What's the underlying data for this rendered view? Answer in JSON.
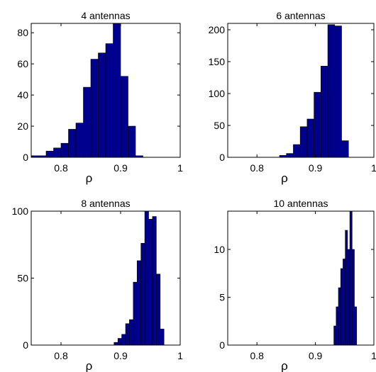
{
  "chart_data": [
    {
      "type": "bar",
      "title": "4 antennas",
      "xlabel": "ρ",
      "ylabel": "",
      "xlim": [
        0.75,
        1.0
      ],
      "ylim": [
        0,
        86
      ],
      "xticks": [
        "0.8",
        "0.9",
        "1"
      ],
      "xtick_values": [
        0.8,
        0.9,
        1.0
      ],
      "yticks": [
        "0",
        "20",
        "40",
        "60",
        "80"
      ],
      "ytick_values": [
        0,
        20,
        40,
        60,
        80
      ],
      "bin_width": 0.0125,
      "bin_centers": [
        0.75625,
        0.76875,
        0.78125,
        0.79375,
        0.80625,
        0.81875,
        0.83125,
        0.84375,
        0.85625,
        0.86875,
        0.88125,
        0.89375,
        0.90625,
        0.91875,
        0.93125,
        0.94375
      ],
      "values": [
        1,
        1,
        4,
        6,
        9,
        18,
        22,
        45,
        63,
        67,
        73,
        86,
        52,
        20,
        1,
        0
      ]
    },
    {
      "type": "bar",
      "title": "6 antennas",
      "xlabel": "ρ",
      "ylabel": "",
      "xlim": [
        0.75,
        1.0
      ],
      "ylim": [
        0,
        210
      ],
      "xticks": [
        "0.8",
        "0.9",
        "1"
      ],
      "xtick_values": [
        0.8,
        0.9,
        1.0
      ],
      "yticks": [
        "0",
        "50",
        "100",
        "150",
        "200"
      ],
      "ytick_values": [
        0,
        50,
        100,
        150,
        200
      ],
      "bin_width": 0.0118,
      "bin_centers": [
        0.8445,
        0.8563,
        0.8681,
        0.8799,
        0.8917,
        0.9035,
        0.9153,
        0.9271,
        0.9389,
        0.9507
      ],
      "values": [
        3,
        6,
        20,
        48,
        60,
        102,
        143,
        208,
        206,
        26
      ]
    },
    {
      "type": "bar",
      "title": "8 antennas",
      "xlabel": "ρ",
      "ylabel": "",
      "xlim": [
        0.75,
        1.0
      ],
      "ylim": [
        0,
        100
      ],
      "xticks": [
        "0.8",
        "0.9",
        "1"
      ],
      "xtick_values": [
        0.8,
        0.9,
        1.0
      ],
      "yticks": [
        "0",
        "50",
        "100"
      ],
      "ytick_values": [
        0,
        50,
        100
      ],
      "bin_width": 0.00645,
      "bin_centers": [
        0.8922,
        0.8987,
        0.9051,
        0.9116,
        0.918,
        0.9245,
        0.9309,
        0.9374,
        0.9438,
        0.9503,
        0.9567,
        0.9632,
        0.9696
      ],
      "values": [
        2,
        5,
        8,
        16,
        19,
        47,
        63,
        76,
        100,
        94,
        96,
        53,
        12
      ]
    },
    {
      "type": "bar",
      "title": "10 antennas",
      "xlabel": "ρ",
      "ylabel": "",
      "xlim": [
        0.75,
        1.0
      ],
      "ylim": [
        0,
        14
      ],
      "xticks": [
        "0.8",
        "0.9",
        "1"
      ],
      "xtick_values": [
        0.8,
        0.9,
        1.0
      ],
      "yticks": [
        "0",
        "5",
        "10"
      ],
      "ytick_values": [
        0,
        5,
        10
      ],
      "bin_width": 0.0039,
      "bin_centers": [
        0.9335,
        0.9374,
        0.9413,
        0.9452,
        0.9491,
        0.953,
        0.9569,
        0.9608,
        0.9647,
        0.9686
      ],
      "values": [
        2,
        4,
        6,
        8,
        9,
        12,
        10,
        14,
        10,
        4
      ]
    }
  ]
}
